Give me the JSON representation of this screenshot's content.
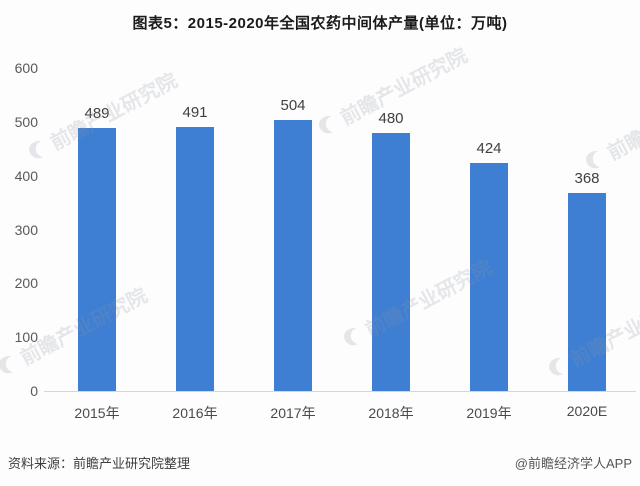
{
  "title": "图表5：2015-2020年全国农药中间体产量(单位：万吨)",
  "chart_data": {
    "type": "bar",
    "title": "图表5：2015-2020年全国农药中间体产量(单位：万吨)",
    "categories": [
      "2015年",
      "2016年",
      "2017年",
      "2018年",
      "2019年",
      "2020E"
    ],
    "values": [
      489,
      491,
      504,
      480,
      424,
      368
    ],
    "xlabel": "",
    "ylabel": "",
    "ylim": [
      0,
      600
    ],
    "yticks": [
      0,
      100,
      200,
      300,
      400,
      500,
      600
    ],
    "grid": false,
    "legend": "none",
    "bar_color": "#3e7ed3"
  },
  "watermark": {
    "text": "前瞻产业研究院",
    "logo": "qianzhan-logo"
  },
  "footer": {
    "source": "资料来源：前瞻产业研究院整理",
    "credit": "@前瞻经济学人APP"
  }
}
